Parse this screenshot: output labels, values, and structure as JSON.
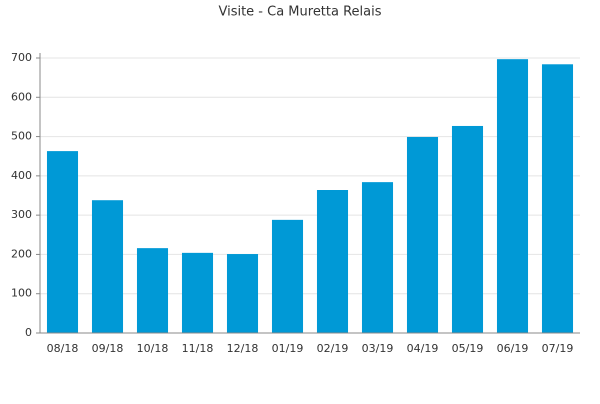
{
  "chart_data": {
    "type": "bar",
    "title": "Visite - Ca Muretta Relais",
    "categories": [
      "08/18",
      "09/18",
      "10/18",
      "11/18",
      "12/18",
      "01/19",
      "02/19",
      "03/19",
      "04/19",
      "05/19",
      "06/19",
      "07/19"
    ],
    "values": [
      463,
      338,
      216,
      204,
      201,
      288,
      364,
      384,
      499,
      527,
      697,
      684
    ],
    "color": "#0099d6",
    "ylim": [
      0,
      700
    ],
    "yticks": [
      0,
      100,
      200,
      300,
      400,
      500,
      600,
      700
    ],
    "grid": true
  }
}
